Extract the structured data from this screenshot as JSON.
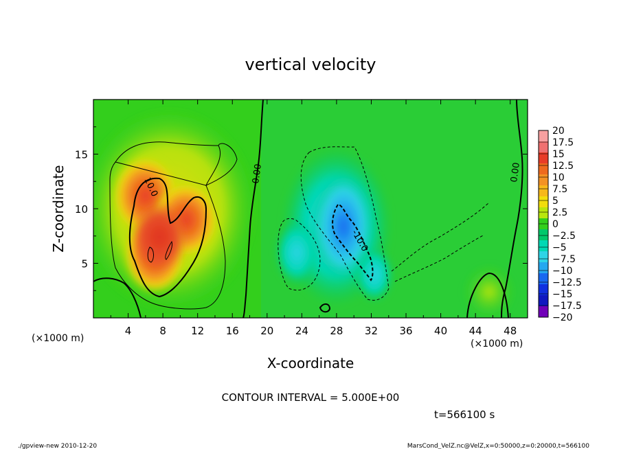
{
  "chart_data": {
    "type": "heatmap",
    "title": "vertical velocity",
    "xlabel": "X-coordinate",
    "ylabel": "Z-coordinate",
    "x_unit_left": "(×1000 m)",
    "x_unit_right": "(×1000 m)",
    "xlim": [
      0,
      50
    ],
    "ylim": [
      0,
      20
    ],
    "x_ticks": [
      4,
      8,
      12,
      16,
      20,
      24,
      28,
      32,
      36,
      40,
      44,
      48
    ],
    "x_tick_labels": [
      "4",
      "8",
      "12",
      "16",
      "20",
      "24",
      "28",
      "32",
      "36",
      "40",
      "44",
      "48"
    ],
    "y_ticks": [
      5,
      10,
      15
    ],
    "y_tick_labels": [
      "5",
      "10",
      "15"
    ],
    "contour_labels": [
      {
        "text": "10.0",
        "x": 6.5,
        "z": 12.0
      },
      {
        "text": "0.00",
        "x": 19.7,
        "z": 13.5
      },
      {
        "text": "-10.0",
        "x": 30.0,
        "z": 6.5
      },
      {
        "text": "0.00",
        "x": 48.9,
        "z": 13.5
      }
    ],
    "colorbar": {
      "levels": [
        "20",
        "17.5",
        "15",
        "12.5",
        "10",
        "7.5",
        "5",
        "2.5",
        "0",
        "−2.5",
        "−5",
        "−7.5",
        "−10",
        "−12.5",
        "−15",
        "−17.5",
        "−20"
      ],
      "colors": [
        "#f8a0a0",
        "#f07070",
        "#e83c28",
        "#ee6a1e",
        "#f39224",
        "#f7b81a",
        "#f2dd0c",
        "#b9e60e",
        "#33cf1c",
        "#00c86a",
        "#00d8b4",
        "#2ed4e6",
        "#24a8f0",
        "#1868f0",
        "#1030e0",
        "#1018c0",
        "#7000b8"
      ]
    },
    "fields": {
      "updraft_center": {
        "x": 9,
        "z": 8,
        "max": 15
      },
      "downdraft_center": {
        "x": 29,
        "z": 7,
        "min": -12
      }
    }
  },
  "contour_interval": "CONTOUR INTERVAL = 5.000E+00",
  "time_label": "t=566100 s",
  "footer_left": "./gpview-new   2010-12-20",
  "footer_right": "MarsCond_VelZ.nc@VelZ,x=0:50000,z=0:20000,t=566100"
}
